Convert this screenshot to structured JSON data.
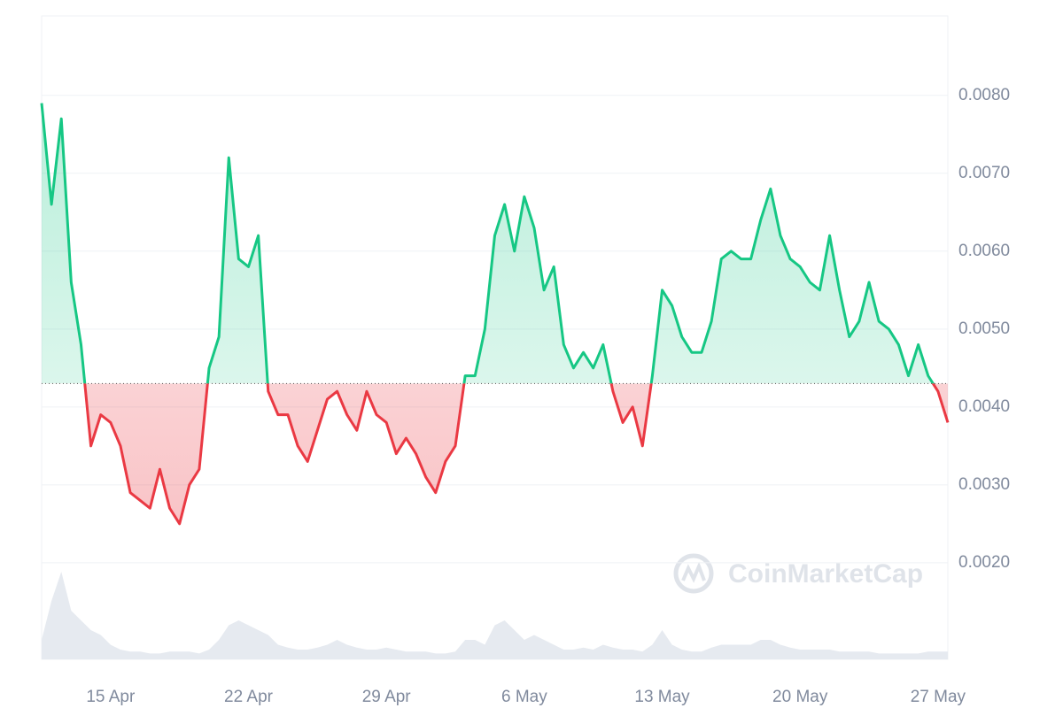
{
  "chart_data": {
    "type": "line",
    "watermark": "CoinMarketCap",
    "categories": [
      null,
      null,
      null,
      null,
      null,
      null,
      null,
      "15 Apr",
      null,
      null,
      null,
      null,
      null,
      null,
      null,
      null,
      null,
      null,
      null,
      null,
      null,
      "22 Apr",
      null,
      null,
      null,
      null,
      null,
      null,
      null,
      null,
      null,
      null,
      null,
      null,
      null,
      "29 Apr",
      null,
      null,
      null,
      null,
      null,
      null,
      null,
      null,
      null,
      null,
      null,
      null,
      null,
      "6 May",
      null,
      null,
      null,
      null,
      null,
      null,
      null,
      null,
      null,
      null,
      null,
      null,
      null,
      "13 May",
      null,
      null,
      null,
      null,
      null,
      null,
      null,
      null,
      null,
      null,
      null,
      null,
      null,
      "20 May",
      null,
      null,
      null,
      null,
      null,
      null,
      null,
      null,
      null,
      null,
      null,
      null,
      null,
      "27 May",
      null
    ],
    "values": [
      0.0079,
      0.0066,
      0.0077,
      0.0056,
      0.0048,
      0.0035,
      0.0039,
      0.0038,
      0.0035,
      0.0029,
      0.0028,
      0.0027,
      0.0032,
      0.0027,
      0.0025,
      0.003,
      0.0032,
      0.0045,
      0.0049,
      0.0072,
      0.0059,
      0.0058,
      0.0062,
      0.0042,
      0.0039,
      0.0039,
      0.0035,
      0.0033,
      0.0037,
      0.0041,
      0.0042,
      0.0039,
      0.0037,
      0.0042,
      0.0039,
      0.0038,
      0.0034,
      0.0036,
      0.0034,
      0.0031,
      0.0029,
      0.0033,
      0.0035,
      0.0044,
      0.0044,
      0.005,
      0.0062,
      0.0066,
      0.006,
      0.0067,
      0.0063,
      0.0055,
      0.0058,
      0.0048,
      0.0045,
      0.0047,
      0.0045,
      0.0048,
      0.0042,
      0.0038,
      0.004,
      0.0035,
      0.0044,
      0.0055,
      0.0053,
      0.0049,
      0.0047,
      0.0047,
      0.0051,
      0.0059,
      0.006,
      0.0059,
      0.0059,
      0.0064,
      0.0068,
      0.0062,
      0.0059,
      0.0058,
      0.0056,
      0.0055,
      0.0062,
      0.0055,
      0.0049,
      0.0051,
      0.0056,
      0.0051,
      0.005,
      0.0048,
      0.0044,
      0.0048,
      0.0044,
      0.0042,
      0.0038
    ],
    "volume": [
      20,
      60,
      90,
      50,
      40,
      30,
      25,
      15,
      10,
      8,
      8,
      6,
      6,
      8,
      8,
      8,
      6,
      10,
      20,
      35,
      40,
      35,
      30,
      25,
      15,
      12,
      10,
      10,
      12,
      15,
      20,
      15,
      12,
      10,
      10,
      12,
      10,
      8,
      8,
      8,
      6,
      6,
      8,
      20,
      20,
      15,
      35,
      40,
      30,
      20,
      25,
      20,
      15,
      10,
      10,
      12,
      10,
      15,
      12,
      10,
      10,
      8,
      15,
      30,
      15,
      10,
      8,
      8,
      12,
      15,
      15,
      15,
      15,
      20,
      20,
      15,
      12,
      10,
      10,
      10,
      10,
      8,
      8,
      8,
      8,
      6,
      6,
      6,
      6,
      6,
      8,
      8,
      8
    ],
    "baseline": 0.0043,
    "up_color": "#16c784",
    "down_color": "#ea3943",
    "volume_color": "#e6eaf0",
    "ylim": [
      0.00076,
      0.00902
    ],
    "yticks": [
      {
        "value": 0.002,
        "label": "0.0020"
      },
      {
        "value": 0.003,
        "label": "0.0030"
      },
      {
        "value": 0.004,
        "label": "0.0040"
      },
      {
        "value": 0.005,
        "label": "0.0050"
      },
      {
        "value": 0.006,
        "label": "0.0060"
      },
      {
        "value": 0.007,
        "label": "0.0070"
      },
      {
        "value": 0.008,
        "label": "0.0080"
      }
    ],
    "grid": true
  }
}
